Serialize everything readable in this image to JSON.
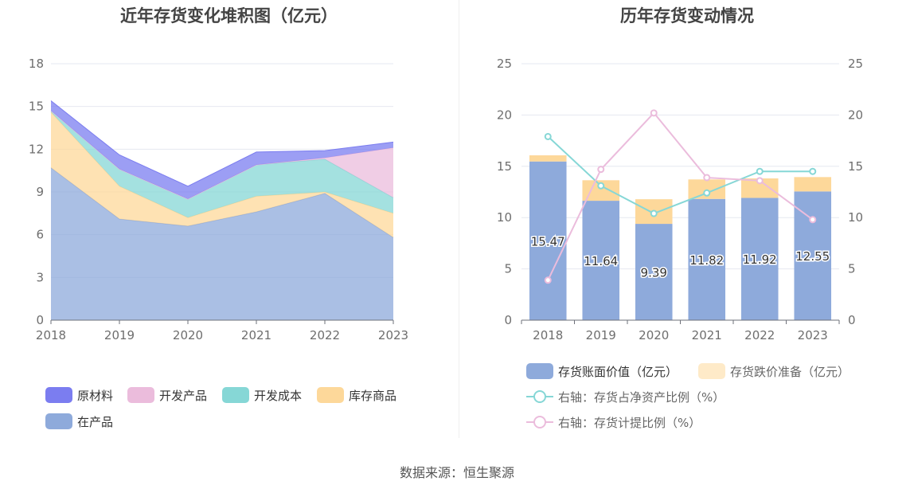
{
  "titles": {
    "left": "近年存货变化堆积图（亿元）",
    "right": "历年存货变动情况"
  },
  "source": "数据来源：恒生聚源",
  "chart_data": [
    {
      "type": "area",
      "stacked": true,
      "title": "近年存货变化堆积图（亿元）",
      "x": [
        "2018",
        "2019",
        "2020",
        "2021",
        "2022",
        "2023"
      ],
      "ylim": [
        0,
        18
      ],
      "yticks": [
        0,
        3,
        6,
        9,
        12,
        15,
        18
      ],
      "grid": true,
      "legend_position": "bottom",
      "series": [
        {
          "name": "在产品",
          "color": "#8eaadb",
          "values": [
            10.7,
            7.1,
            6.6,
            7.6,
            8.9,
            5.8
          ]
        },
        {
          "name": "库存商品",
          "color": "#fdd89a",
          "values": [
            3.9,
            2.3,
            0.6,
            1.1,
            0.1,
            1.7
          ]
        },
        {
          "name": "开发成本",
          "color": "#86d7d6",
          "values": [
            0.1,
            1.2,
            1.3,
            2.2,
            2.3,
            1.1
          ]
        },
        {
          "name": "开发产品",
          "color": "#ebbcdc",
          "values": [
            0.0,
            0.0,
            0.0,
            0.0,
            0.1,
            3.5
          ]
        },
        {
          "name": "原材料",
          "color": "#7b7df0",
          "values": [
            0.7,
            1.0,
            0.9,
            0.9,
            0.5,
            0.4
          ]
        }
      ],
      "legend_order": [
        "原材料",
        "开发产品",
        "开发成本",
        "库存商品",
        "在产品"
      ]
    },
    {
      "type": "bar",
      "stacked": true,
      "title": "历年存货变动情况",
      "categories": [
        "2018",
        "2019",
        "2020",
        "2021",
        "2022",
        "2023"
      ],
      "ylim": [
        0,
        25
      ],
      "yticks": [
        0,
        5,
        10,
        15,
        20,
        25
      ],
      "y2lim": [
        0,
        25
      ],
      "y2ticks": [
        0,
        5,
        10,
        15,
        20,
        25
      ],
      "grid": true,
      "legend_position": "bottom",
      "series": [
        {
          "name": "存货账面价值（亿元）",
          "color": "#8eaadb",
          "values": [
            15.47,
            11.64,
            9.39,
            11.82,
            11.92,
            12.55
          ],
          "labels": [
            "15.47",
            "11.64",
            "9.39",
            "11.82",
            "11.92",
            "12.55"
          ]
        },
        {
          "name": "存货跌价准备（亿元）",
          "color": "#fdd89a",
          "values": [
            0.6,
            2.0,
            2.4,
            1.9,
            1.9,
            1.4
          ]
        }
      ],
      "line_series": [
        {
          "name": "右轴：存货占净资产比例（%）",
          "color": "#86d7d6",
          "axis": "right",
          "values": [
            17.9,
            13.1,
            10.4,
            12.4,
            14.5,
            14.5
          ]
        },
        {
          "name": "右轴：存货计提比例（%）",
          "color": "#ebbcdc",
          "axis": "right",
          "values": [
            3.9,
            14.7,
            20.2,
            13.9,
            13.6,
            9.8
          ]
        }
      ]
    }
  ]
}
